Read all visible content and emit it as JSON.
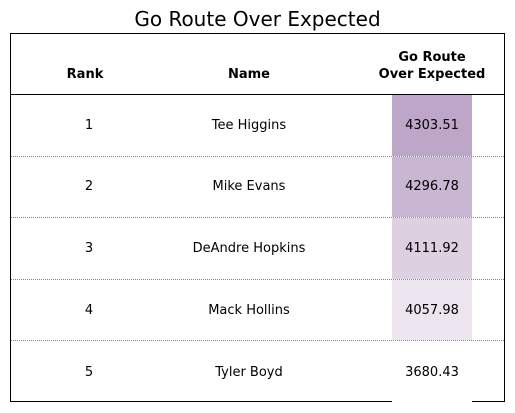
{
  "chart_data": {
    "type": "table",
    "title": "Go Route Over Expected",
    "columns": [
      "Rank",
      "Name",
      "Go Route\nOver Expected"
    ],
    "rows": [
      {
        "rank": "1",
        "name": "Tee Higgins",
        "value": "4303.51",
        "shade": "#bea6c8"
      },
      {
        "rank": "2",
        "name": "Mike Evans",
        "value": "4296.78",
        "shade": "#c8b6d2"
      },
      {
        "rank": "3",
        "name": "DeAndre Hopkins",
        "value": "4111.92",
        "shade": "#dcd0e1"
      },
      {
        "rank": "4",
        "name": "Mack Hollins",
        "value": "4057.98",
        "shade": "#ece4ef"
      },
      {
        "rank": "5",
        "name": "Tyler Boyd",
        "value": "3680.43",
        "shade": "#ffffff"
      }
    ]
  }
}
